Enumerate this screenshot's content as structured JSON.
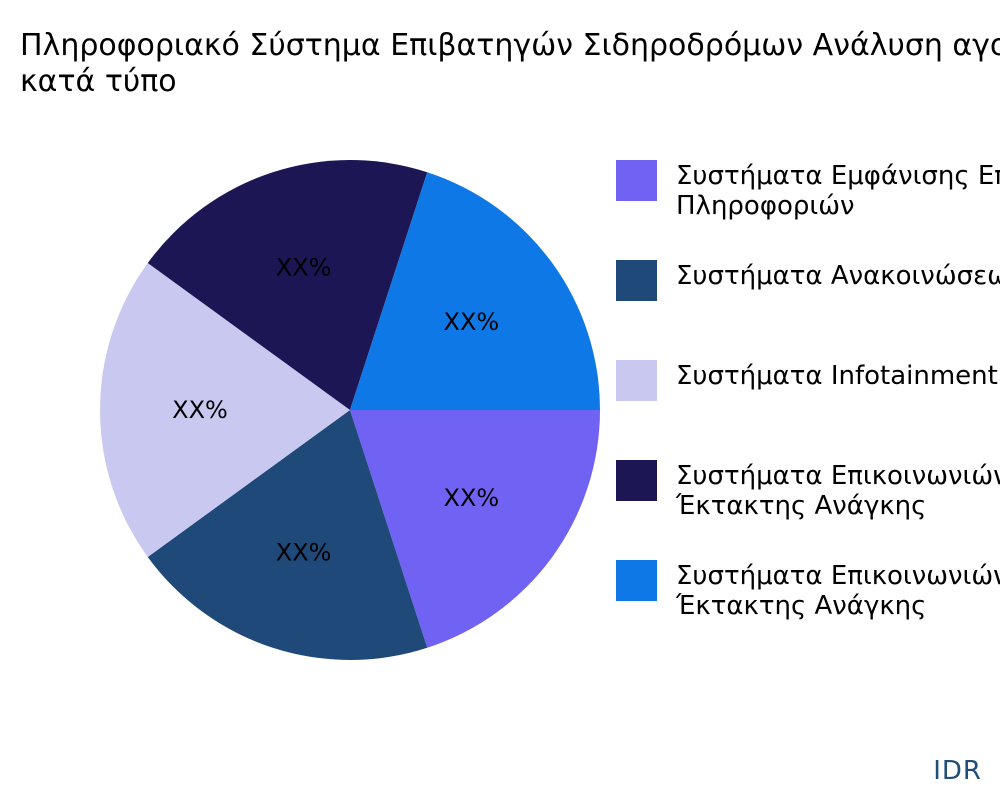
{
  "chart_data": {
    "type": "pie",
    "title": "Πληροφοριακό Σύστημα Επιβατηγών Σιδηροδρόμων Ανάλυση αγοράς κατά τύπο",
    "slices": [
      {
        "name": "Συστήματα Εμφάνισης Επιβατικών Πληροφοριών",
        "value": 20,
        "label": "XX%",
        "color": "#7063f3"
      },
      {
        "name": "Συστήματα Ανακοινώσεων Επιβατών",
        "value": 20,
        "label": "XX%",
        "color": "#1f4978"
      },
      {
        "name": "Συστήματα Infotainment",
        "value": 20,
        "label": "XX%",
        "color": "#c9c8f0"
      },
      {
        "name": "Συστήματα Επικοινωνιών Έκτακτης Ανάγκης",
        "value": 20,
        "label": "XX%",
        "color": "#1c1655"
      },
      {
        "name": "Συστήματα Επικοινωνιών Έκτακτης Ανάγκης",
        "value": 20,
        "label": "XX%",
        "color": "#0d78e6"
      }
    ],
    "legend_position": "right"
  },
  "brand": "IDR"
}
